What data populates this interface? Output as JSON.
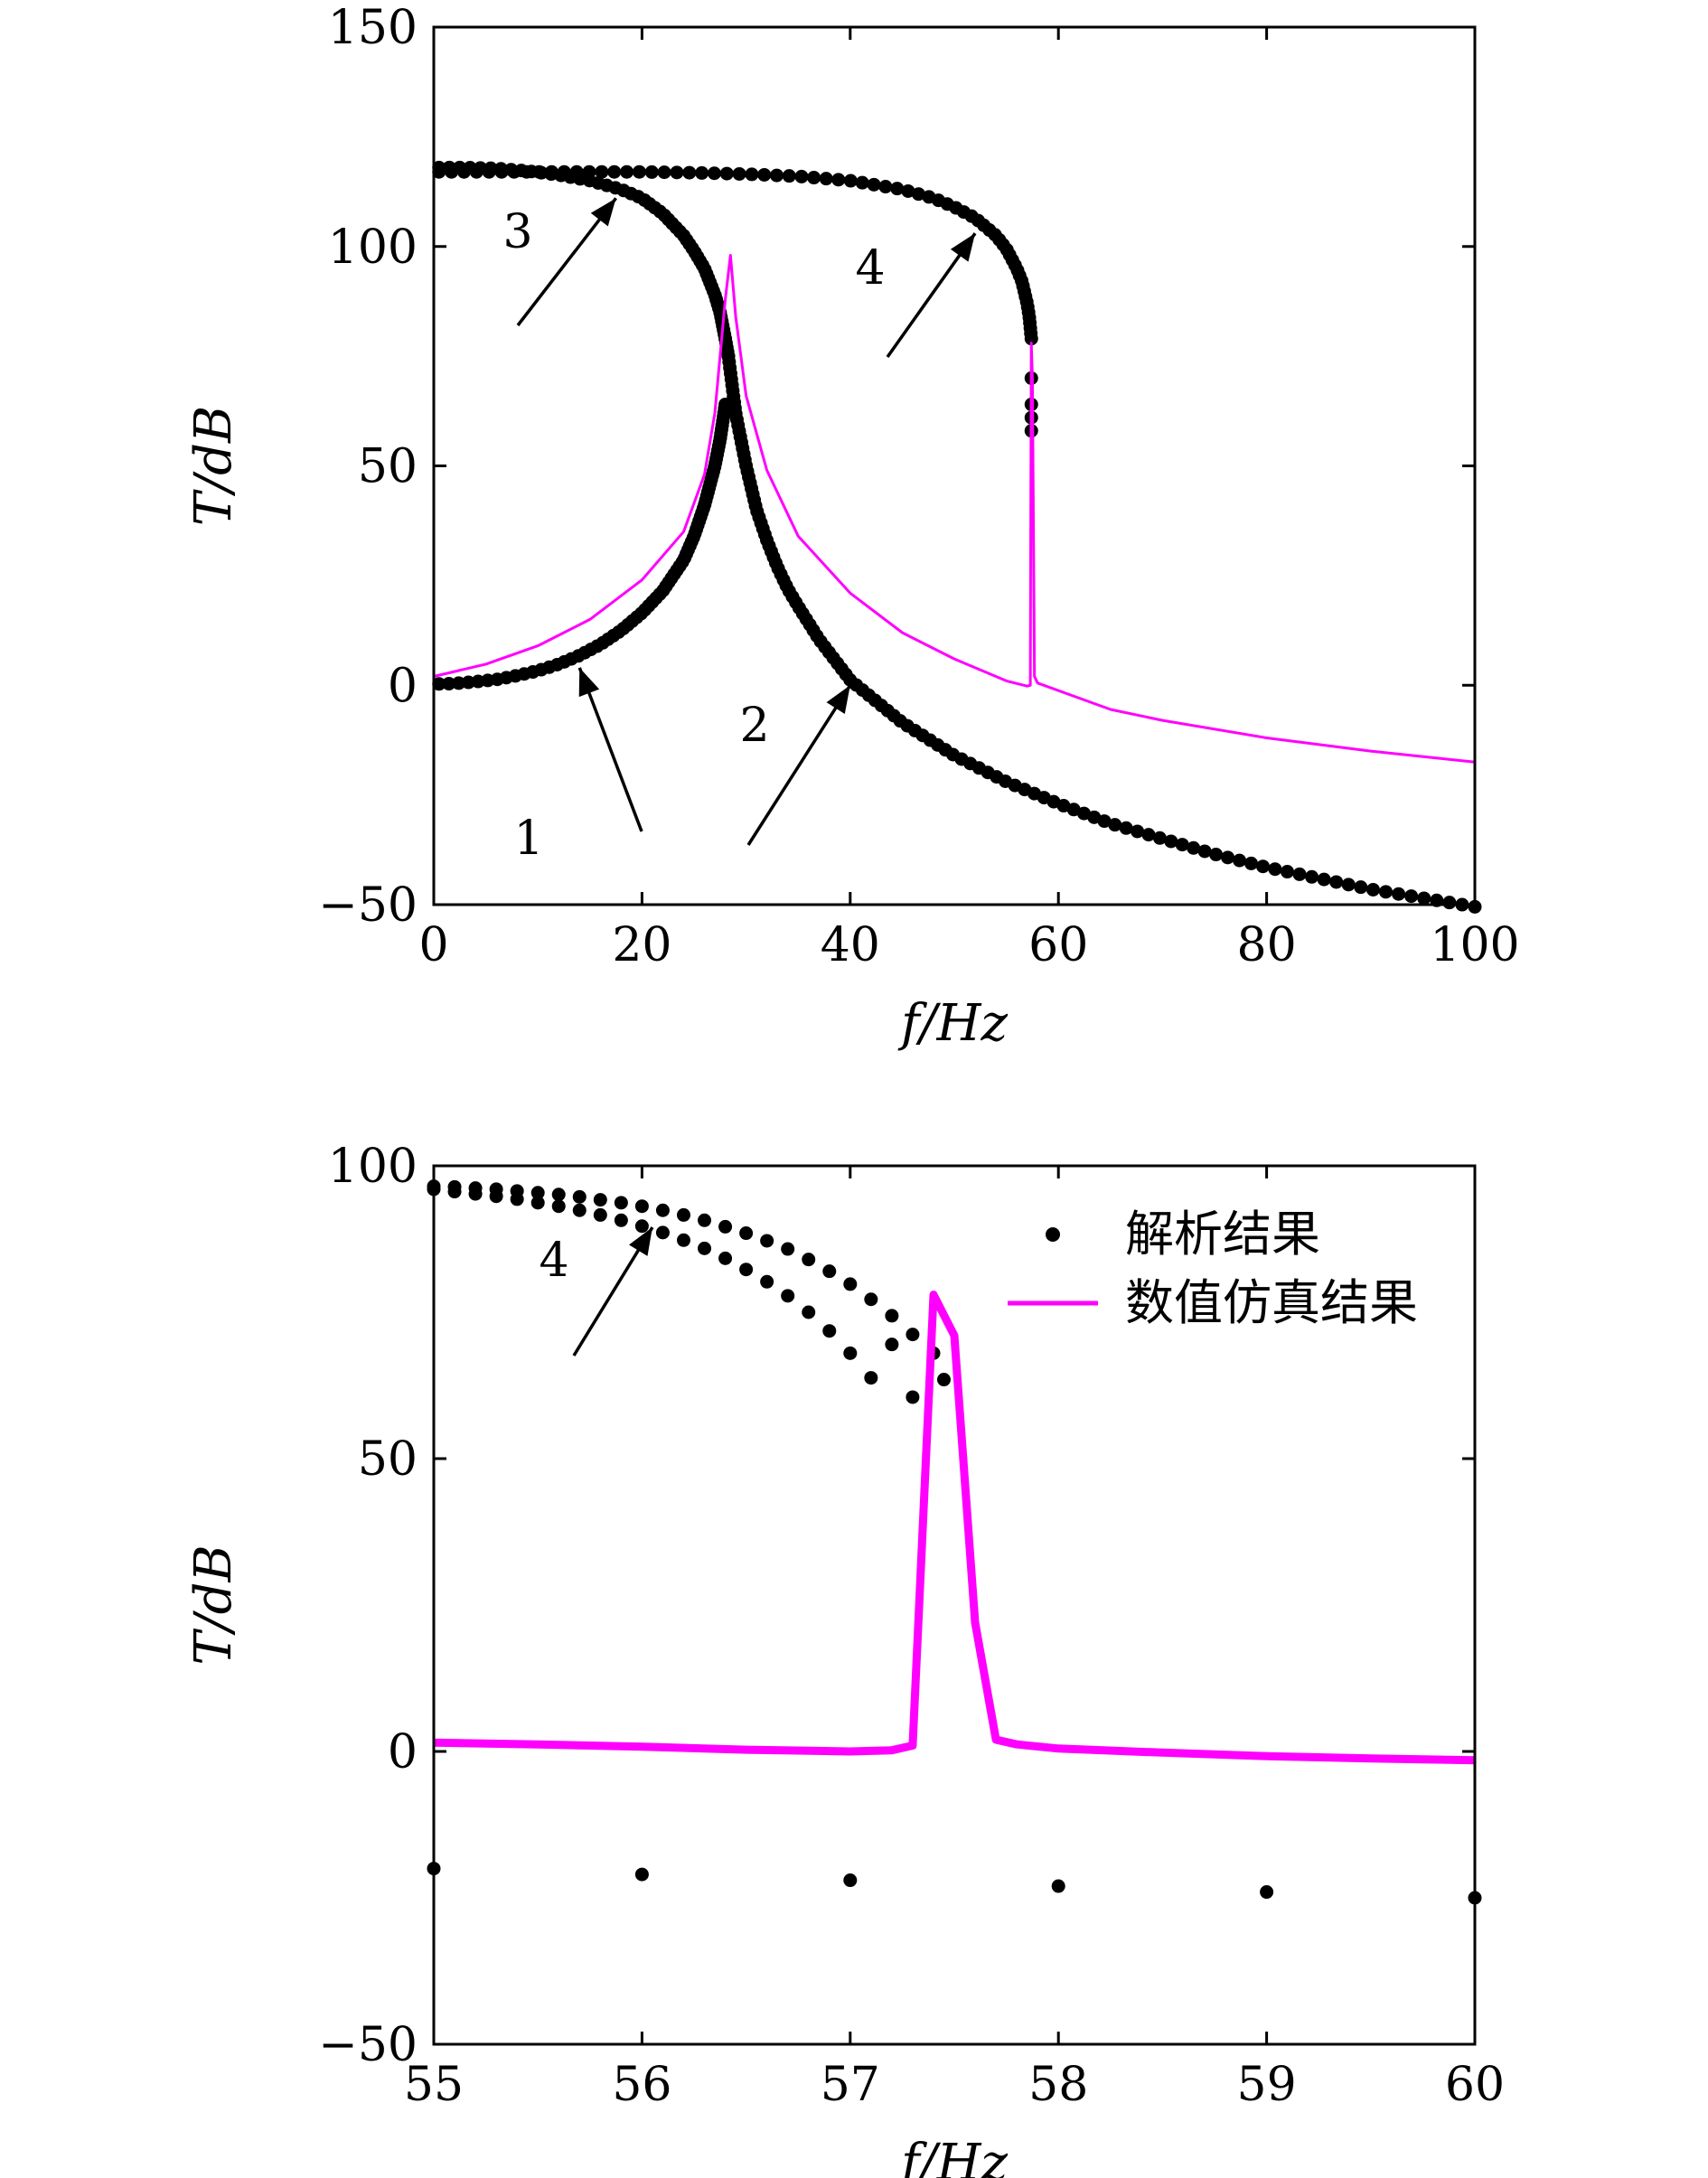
{
  "chart_data": [
    {
      "type": "scatter",
      "xlabel": "f/Hz",
      "ylabel": "T/dB",
      "xlim": [
        0,
        100
      ],
      "ylim": [
        -50,
        150
      ],
      "xticks": [
        0,
        20,
        40,
        60,
        80,
        100
      ],
      "yticks": [
        -50,
        0,
        50,
        100,
        150
      ],
      "grid": false,
      "series": [
        {
          "kind": "points",
          "color": "#000000",
          "branches": [
            {
              "x": [
                0.5,
                2,
                4,
                6,
                8,
                10,
                12,
                14,
                16,
                18,
                20,
                22,
                24,
                25,
                26,
                27,
                27.5,
                28
              ],
              "y": [
                0.3,
                0.4,
                0.8,
                1.3,
                2.2,
                3.3,
                4.8,
                6.8,
                9.3,
                12.5,
                16.5,
                21.5,
                28.5,
                34,
                41,
                50,
                56,
                64
              ]
            },
            {
              "x": [
                28.3,
                29,
                30,
                31,
                32,
                33,
                34,
                35,
                37,
                40,
                45,
                50,
                55,
                60,
                65,
                70,
                75,
                80,
                85,
                90,
                95,
                100
              ],
              "y": [
                75,
                62,
                50,
                40,
                33,
                27,
                22,
                18,
                10.5,
                1.2,
                -8.5,
                -16,
                -22,
                -27,
                -31.5,
                -35,
                -38.5,
                -41.5,
                -44,
                -46.5,
                -48.5,
                -50.5
              ]
            },
            {
              "x": [
                0.5,
                3,
                6,
                9,
                12,
                15,
                18,
                20,
                22,
                24,
                25,
                26,
                27,
                27.5,
                28,
                28.3
              ],
              "y": [
                118,
                118,
                117.8,
                117.2,
                116.3,
                115,
                113,
                111,
                107.5,
                102.5,
                99,
                95,
                89,
                85,
                79,
                75
              ]
            },
            {
              "x": [
                0.5,
                5,
                10,
                15,
                20,
                25,
                30,
                35,
                40,
                45,
                48,
                50,
                52,
                54,
                55,
                56,
                56.5,
                57,
                57.2,
                57.4
              ],
              "y": [
                117,
                117,
                117,
                117,
                117,
                116.8,
                116.5,
                116,
                115,
                113,
                111,
                109,
                106.5,
                102.5,
                99.5,
                95,
                92,
                87,
                84,
                79
              ]
            },
            {
              "x": [
                57.4,
                57.4,
                57.4,
                57.4
              ],
              "y": [
                70,
                64,
                61,
                58
              ]
            }
          ]
        },
        {
          "kind": "line",
          "color": "#ff00ff",
          "x": [
            0,
            5,
            10,
            15,
            20,
            24,
            26,
            27,
            28,
            28.5,
            29,
            30,
            32,
            35,
            40,
            45,
            50,
            55,
            57,
            57.3,
            57.4,
            57.5,
            57.7,
            58,
            65,
            70,
            80,
            90,
            100
          ],
          "y": [
            2,
            4.8,
            9,
            15,
            24,
            35,
            48,
            62,
            88,
            98,
            84,
            66,
            49,
            34,
            21,
            12,
            6,
            1,
            -0.2,
            0,
            78,
            70,
            2,
            0.5,
            -5.5,
            -8,
            -12,
            -15,
            -17.5
          ]
        }
      ],
      "annotations": [
        {
          "text": "1",
          "tip": [
            14,
            4
          ]
        },
        {
          "text": "2",
          "tip": [
            40,
            0
          ]
        },
        {
          "text": "3",
          "tip": [
            17.5,
            111
          ]
        },
        {
          "text": "4",
          "tip": [
            52,
            103
          ]
        }
      ]
    },
    {
      "type": "scatter",
      "xlabel": "f/Hz",
      "ylabel": "T/dB",
      "xlim": [
        55,
        60
      ],
      "ylim": [
        -50,
        100
      ],
      "xticks": [
        55,
        56,
        57,
        58,
        59,
        60
      ],
      "yticks": [
        -50,
        0,
        50,
        100
      ],
      "grid": false,
      "legend_position": "top-right",
      "series": [
        {
          "name": "解析结果",
          "kind": "points",
          "color": "#000000",
          "branches": [
            {
              "x": [
                55,
                55.1,
                55.2,
                55.3,
                55.4,
                55.5,
                55.6,
                55.7,
                55.8,
                55.9,
                56,
                56.1,
                56.2,
                56.3,
                56.4,
                56.5,
                56.6,
                56.7,
                56.8,
                56.9,
                57,
                57.1,
                57.2,
                57.3,
                57.4
              ],
              "y": [
                96.5,
                96.4,
                96.2,
                96,
                95.7,
                95.4,
                95.1,
                94.7,
                94.2,
                93.7,
                93.1,
                92.4,
                91.6,
                90.7,
                89.6,
                88.5,
                87.2,
                85.8,
                84,
                82,
                79.8,
                77.2,
                74.4,
                71.2,
                68
              ]
            },
            {
              "x": [
                55,
                55.1,
                55.2,
                55.3,
                55.4,
                55.5,
                55.6,
                55.7,
                55.8,
                55.9,
                56,
                56.1,
                56.2,
                56.3,
                56.4,
                56.5,
                56.6,
                56.7,
                56.8,
                56.9,
                57,
                57.1,
                57.2,
                57.3,
                57.45
              ],
              "y": [
                96,
                95.6,
                95.2,
                94.8,
                94.3,
                93.7,
                93.1,
                92.4,
                91.6,
                90.7,
                89.7,
                88.6,
                87.3,
                85.9,
                84.2,
                82.3,
                80.2,
                77.8,
                75,
                71.8,
                68,
                63.8,
                69.5,
                60.5,
                63.5
              ]
            },
            {
              "x": [
                55,
                56,
                57,
                58,
                59,
                60
              ],
              "y": [
                -20,
                -21,
                -22,
                -23,
                -24,
                -25
              ]
            }
          ]
        },
        {
          "name": "数值仿真结果",
          "kind": "line",
          "color": "#ff00ff",
          "x": [
            55,
            55.5,
            56,
            56.5,
            57,
            57.2,
            57.3,
            57.4,
            57.5,
            57.6,
            57.7,
            57.8,
            58,
            58.5,
            59,
            59.5,
            60
          ],
          "y": [
            1.5,
            1.2,
            0.8,
            0.3,
            0,
            0.2,
            1,
            78,
            71,
            22,
            2,
            1.2,
            0.5,
            -0.2,
            -0.8,
            -1.2,
            -1.5
          ]
        }
      ],
      "annotations": [
        {
          "text": "4",
          "tip": [
            56.05,
            89.5
          ]
        }
      ]
    }
  ]
}
